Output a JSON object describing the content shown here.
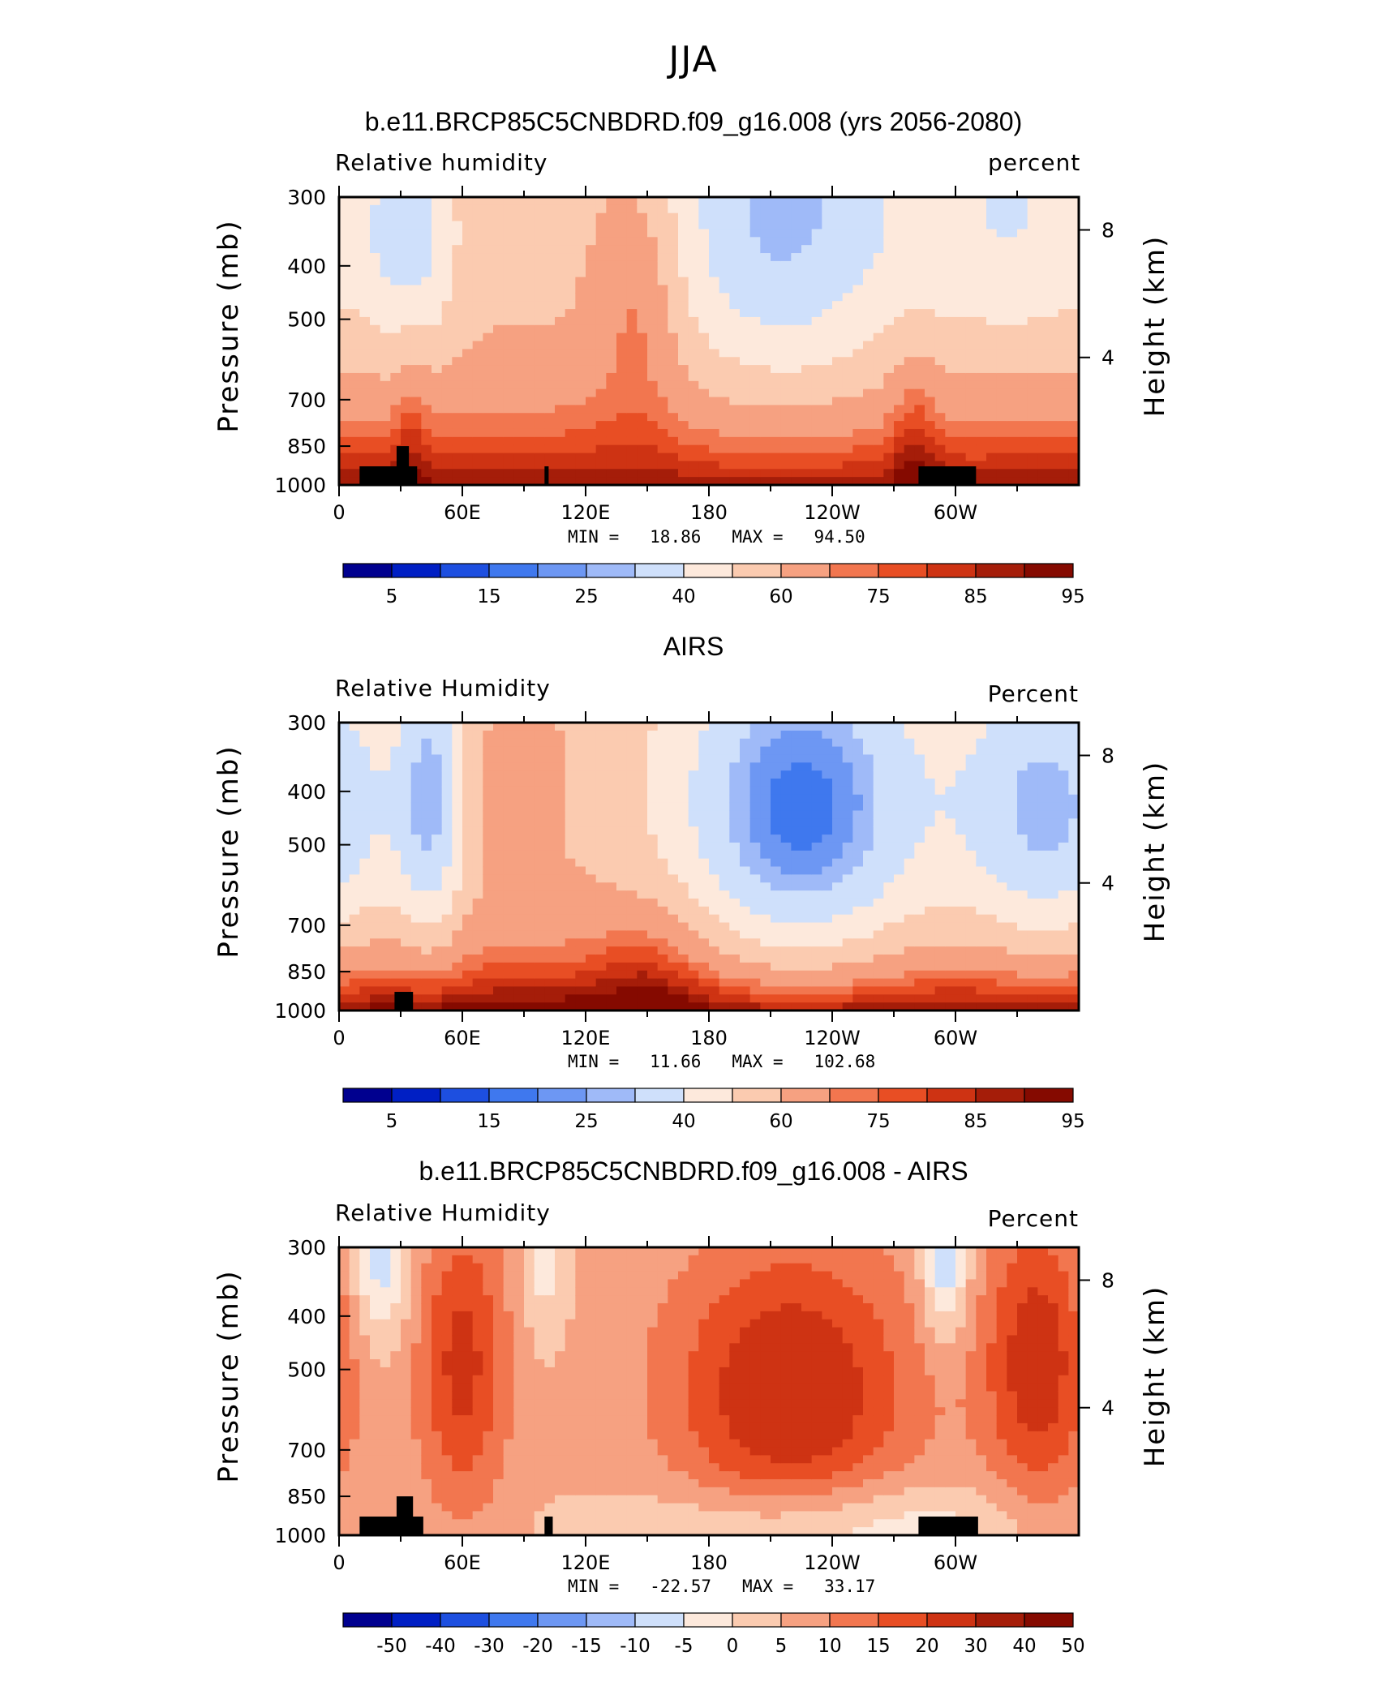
{
  "title": "JJA",
  "colors": {
    "levels_abs": [
      "#00008f",
      "#001fc4",
      "#1d4fe0",
      "#3f78ee",
      "#6d97f3",
      "#9fbaf8",
      "#cfe0fb",
      "#fde9dc",
      "#fbcbb0",
      "#f6a181",
      "#f2764f",
      "#e84e24",
      "#ce3313",
      "#a51d09",
      "#850a00"
    ],
    "levels_diff": [
      "#00008f",
      "#001fc4",
      "#1d4fe0",
      "#3f78ee",
      "#6d97f3",
      "#9fbaf8",
      "#cfe0fb",
      "#fde9dc",
      "#fbcbb0",
      "#f6a181",
      "#f2764f",
      "#e84e24",
      "#ce3313",
      "#a51d09",
      "#850a00"
    ],
    "land_mask": "#000000"
  },
  "panels": [
    {
      "title": "b.e11.BRCP85C5CNBDRD.f09_g16.008 (yrs 2056-2080)",
      "left_label": "Relative humidity",
      "right_label": "percent",
      "min_label": "MIN =",
      "min_value": "18.86",
      "max_label": "MAX =",
      "max_value": "94.50"
    },
    {
      "title": "AIRS",
      "left_label": "Relative Humidity",
      "right_label": "Percent",
      "min_label": "MIN =",
      "min_value": "11.66",
      "max_label": "MAX =",
      "max_value": "102.68"
    },
    {
      "title": "b.e11.BRCP85C5CNBDRD.f09_g16.008 - AIRS",
      "left_label": "Relative Humidity",
      "right_label": "Percent",
      "min_label": "MIN =",
      "min_value": "-22.57",
      "max_label": "MAX =",
      "max_value": "33.17"
    }
  ],
  "axis_labels": {
    "left": "Pressure (mb)",
    "right": "Height (km)"
  },
  "chart_data": [
    {
      "type": "heatmap",
      "title": "b.e11.BRCP85C5CNBDRD.f09_g16.008 (yrs 2056-2080)",
      "x_ticks": [
        "0",
        "60E",
        "120E",
        "180",
        "120W",
        "60W"
      ],
      "x_tick_lon": [
        0,
        60,
        120,
        180,
        240,
        300
      ],
      "x_range": [
        0,
        360
      ],
      "y_ticks": [
        "300",
        "400",
        "500",
        "700",
        "850",
        "1000"
      ],
      "y_tick_values": [
        300,
        400,
        500,
        700,
        850,
        1000
      ],
      "y_range": [
        300,
        1000
      ],
      "y_scale": "log",
      "right_ticks": [
        "8",
        "4"
      ],
      "right_tick_values": [
        8,
        4
      ],
      "colorbar_labels": [
        "5",
        "15",
        "25",
        "40",
        "60",
        "75",
        "85",
        "95"
      ],
      "colorbar_levels": [
        5,
        10,
        15,
        20,
        25,
        30,
        40,
        50,
        60,
        70,
        75,
        80,
        85,
        90,
        95
      ],
      "min": 18.86,
      "max": 94.5,
      "field": "rh_model",
      "land_blocks": [
        {
          "lon": [
            10,
            38
          ],
          "p_top": 925
        },
        {
          "lon": [
            28,
            34
          ],
          "p_top": 850
        },
        {
          "lon": [
            100,
            102
          ],
          "p_top": 925
        },
        {
          "lon": [
            282,
            310
          ],
          "p_top": 925
        }
      ]
    },
    {
      "type": "heatmap",
      "title": "AIRS",
      "x_ticks": [
        "0",
        "60E",
        "120E",
        "180",
        "120W",
        "60W"
      ],
      "x_tick_lon": [
        0,
        60,
        120,
        180,
        240,
        300
      ],
      "x_range": [
        0,
        360
      ],
      "y_ticks": [
        "300",
        "400",
        "500",
        "700",
        "850",
        "1000"
      ],
      "y_tick_values": [
        300,
        400,
        500,
        700,
        850,
        1000
      ],
      "y_range": [
        300,
        1000
      ],
      "y_scale": "log",
      "right_ticks": [
        "8",
        "4"
      ],
      "right_tick_values": [
        8,
        4
      ],
      "colorbar_labels": [
        "5",
        "15",
        "25",
        "40",
        "60",
        "75",
        "85",
        "95"
      ],
      "colorbar_levels": [
        5,
        10,
        15,
        20,
        25,
        30,
        40,
        50,
        60,
        70,
        75,
        80,
        85,
        90,
        95
      ],
      "min": 11.66,
      "max": 102.68,
      "field": "rh_airs",
      "land_blocks": [
        {
          "lon": [
            27,
            36
          ],
          "p_top": 925
        }
      ]
    },
    {
      "type": "heatmap",
      "title": "b.e11.BRCP85C5CNBDRD.f09_g16.008 - AIRS",
      "x_ticks": [
        "0",
        "60E",
        "120E",
        "180",
        "120W",
        "60W"
      ],
      "x_tick_lon": [
        0,
        60,
        120,
        180,
        240,
        300
      ],
      "x_range": [
        0,
        360
      ],
      "y_ticks": [
        "300",
        "400",
        "500",
        "700",
        "850",
        "1000"
      ],
      "y_tick_values": [
        300,
        400,
        500,
        700,
        850,
        1000
      ],
      "y_range": [
        300,
        1000
      ],
      "y_scale": "log",
      "right_ticks": [
        "8",
        "4"
      ],
      "right_tick_values": [
        8,
        4
      ],
      "colorbar_labels": [
        "-50",
        "-40",
        "-30",
        "-20",
        "-15",
        "-10",
        "-5",
        "0",
        "5",
        "10",
        "15",
        "20",
        "30",
        "40",
        "50"
      ],
      "colorbar_levels": [
        -50,
        -40,
        -30,
        -20,
        -15,
        -10,
        -5,
        0,
        5,
        10,
        15,
        20,
        30,
        40,
        50
      ],
      "min": -22.57,
      "max": 33.17,
      "field": "rh_diff",
      "land_blocks": [
        {
          "lon": [
            10,
            41
          ],
          "p_top": 925
        },
        {
          "lon": [
            28,
            36
          ],
          "p_top": 850
        },
        {
          "lon": [
            100,
            104
          ],
          "p_top": 925
        },
        {
          "lon": [
            282,
            311
          ],
          "p_top": 925
        }
      ]
    }
  ]
}
